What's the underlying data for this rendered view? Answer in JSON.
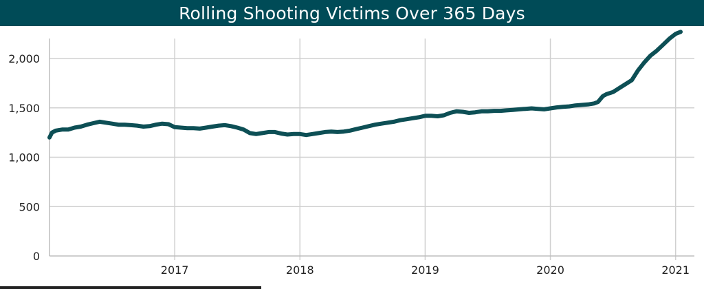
{
  "chart_data": {
    "type": "line",
    "title": "Rolling Shooting Victims Over 365 Days",
    "xlabel": "",
    "ylabel": "",
    "ylim": [
      0,
      2300
    ],
    "xlim": [
      2016.0,
      2021.15
    ],
    "y_ticks": [
      0,
      500,
      1000,
      1500,
      2000
    ],
    "y_tick_labels": [
      "0",
      "500",
      "1,000",
      "1,500",
      "2,000"
    ],
    "x_ticks": [
      2017,
      2018,
      2019,
      2020,
      2021
    ],
    "x_tick_labels": [
      "2017",
      "2018",
      "2019",
      "2020",
      "2021"
    ],
    "grid": true,
    "line_color": "#0d4f55",
    "series": [
      {
        "x": [
          2016.0,
          2016.02,
          2016.05,
          2016.1,
          2016.15,
          2016.2,
          2016.25,
          2016.3,
          2016.35,
          2016.4,
          2016.45,
          2016.5,
          2016.55,
          2016.6,
          2016.65,
          2016.7,
          2016.75,
          2016.8,
          2016.85,
          2016.9,
          2016.95,
          2017.0,
          2017.05,
          2017.1,
          2017.15,
          2017.2,
          2017.25,
          2017.3,
          2017.35,
          2017.4,
          2017.45,
          2017.5,
          2017.55,
          2017.6,
          2017.65,
          2017.7,
          2017.75,
          2017.8,
          2017.85,
          2017.9,
          2017.95,
          2018.0,
          2018.05,
          2018.1,
          2018.15,
          2018.2,
          2018.25,
          2018.3,
          2018.35,
          2018.4,
          2018.45,
          2018.5,
          2018.55,
          2018.6,
          2018.65,
          2018.7,
          2018.75,
          2018.8,
          2018.85,
          2018.9,
          2018.95,
          2019.0,
          2019.05,
          2019.1,
          2019.15,
          2019.2,
          2019.25,
          2019.3,
          2019.35,
          2019.4,
          2019.45,
          2019.5,
          2019.55,
          2019.6,
          2019.65,
          2019.7,
          2019.75,
          2019.8,
          2019.85,
          2019.9,
          2019.95,
          2020.0,
          2020.05,
          2020.1,
          2020.15,
          2020.2,
          2020.25,
          2020.3,
          2020.35,
          2020.38,
          2020.42,
          2020.45,
          2020.5,
          2020.55,
          2020.6,
          2020.65,
          2020.7,
          2020.75,
          2020.8,
          2020.85,
          2020.9,
          2020.95,
          2021.0,
          2021.04
        ],
        "y": [
          1200,
          1250,
          1270,
          1280,
          1280,
          1300,
          1310,
          1330,
          1345,
          1360,
          1350,
          1340,
          1330,
          1330,
          1325,
          1320,
          1310,
          1315,
          1330,
          1340,
          1335,
          1305,
          1300,
          1295,
          1295,
          1290,
          1300,
          1310,
          1320,
          1325,
          1315,
          1300,
          1280,
          1245,
          1235,
          1245,
          1255,
          1255,
          1240,
          1230,
          1235,
          1235,
          1225,
          1235,
          1245,
          1255,
          1260,
          1255,
          1260,
          1270,
          1285,
          1300,
          1315,
          1330,
          1340,
          1350,
          1360,
          1375,
          1385,
          1395,
          1405,
          1420,
          1420,
          1415,
          1425,
          1450,
          1465,
          1460,
          1450,
          1455,
          1465,
          1465,
          1470,
          1470,
          1475,
          1480,
          1485,
          1490,
          1495,
          1490,
          1485,
          1495,
          1505,
          1510,
          1515,
          1525,
          1530,
          1535,
          1545,
          1560,
          1620,
          1640,
          1660,
          1700,
          1740,
          1780,
          1880,
          1960,
          2030,
          2080,
          2140,
          2200,
          2250,
          2270
        ]
      }
    ]
  }
}
